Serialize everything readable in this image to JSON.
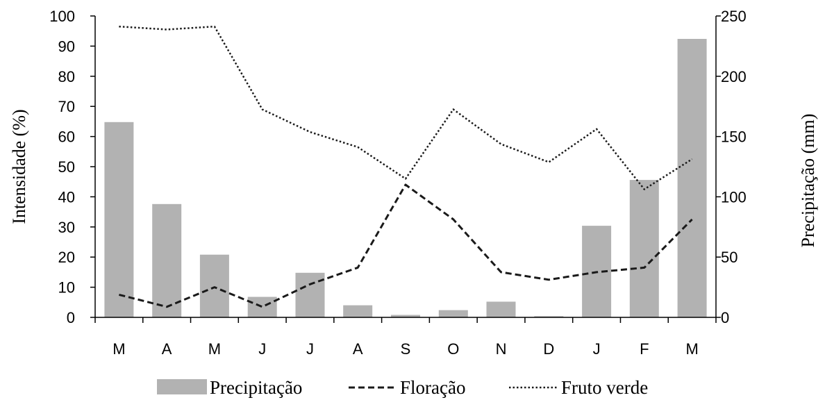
{
  "chart_data": {
    "type": "bar",
    "categories": [
      "M",
      "A",
      "M",
      "J",
      "J",
      "A",
      "S",
      "O",
      "N",
      "D",
      "J",
      "F",
      "M"
    ],
    "series": [
      {
        "name": "Precipitação",
        "type": "bar",
        "axis": "right",
        "color": "#b2b2b2",
        "values": [
          162,
          94,
          52,
          17,
          37,
          10,
          2,
          6,
          13,
          1,
          76,
          114,
          231
        ]
      },
      {
        "name": "Floração",
        "type": "line",
        "axis": "left",
        "color": "#1a1a1a",
        "style": "dashed",
        "values": [
          7.5,
          3.5,
          10,
          3.5,
          11,
          16.5,
          44,
          32.5,
          15,
          12.5,
          15,
          16.5,
          32.5
        ]
      },
      {
        "name": "Fruto verde",
        "type": "line",
        "axis": "left",
        "color": "#1a1a1a",
        "style": "dotted",
        "values": [
          96.5,
          95.5,
          96.5,
          69,
          61.5,
          56.5,
          46,
          69,
          57.5,
          51.5,
          62.5,
          42.5,
          52.5
        ]
      }
    ],
    "yleft": {
      "label": "Intensidade (%)",
      "ylim": [
        0,
        100
      ],
      "ticks": [
        "0",
        "10",
        "20",
        "30",
        "40",
        "50",
        "60",
        "70",
        "80",
        "90",
        "100"
      ]
    },
    "yright": {
      "label": "Precipitação (mm)",
      "ylim": [
        0,
        250
      ],
      "ticks": [
        "0",
        "50",
        "100",
        "150",
        "200",
        "250"
      ]
    },
    "xlabel": "",
    "title": "",
    "grid": false,
    "legend_position": "bottom"
  }
}
